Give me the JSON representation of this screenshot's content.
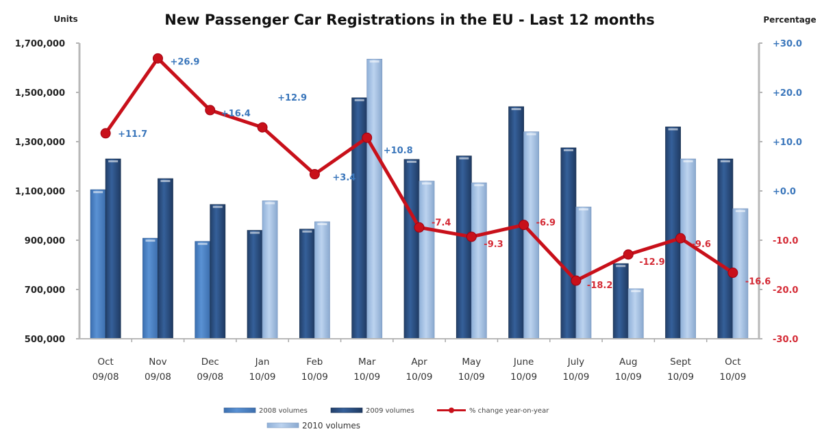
{
  "chart_data": {
    "type": "bar",
    "title": "New Passenger Car Registrations in the EU - Last 12 months",
    "ylabel": "Units",
    "y2label": "Percentage",
    "ylim": [
      500000,
      1700000
    ],
    "y2lim": [
      -30,
      30
    ],
    "yticks": [
      "500,000",
      "700,000",
      "900,000",
      "1,100,000",
      "1,300,000",
      "1,500,000",
      "1,700,000"
    ],
    "y2ticks": [
      "-30.0",
      "-20.0",
      "-10.0",
      "+0.0",
      "+10.0",
      "+20.0",
      "+30.0"
    ],
    "categories": [
      {
        "month": "Oct",
        "period": "09/08"
      },
      {
        "month": "Nov",
        "period": "09/08"
      },
      {
        "month": "Dec",
        "period": "09/08"
      },
      {
        "month": "Jan",
        "period": "10/09"
      },
      {
        "month": "Feb",
        "period": "10/09"
      },
      {
        "month": "Mar",
        "period": "10/09"
      },
      {
        "month": "Apr",
        "period": "10/09"
      },
      {
        "month": "May",
        "period": "10/09"
      },
      {
        "month": "June",
        "period": "10/09"
      },
      {
        "month": "July",
        "period": "10/09"
      },
      {
        "month": "Aug",
        "period": "10/09"
      },
      {
        "month": "Sept",
        "period": "10/09"
      },
      {
        "month": "Oct",
        "period": "10/09"
      }
    ],
    "series": [
      {
        "name": "2008 volumes",
        "type": "bar",
        "axis": "left",
        "color": "#4a80c4",
        "values": [
          1105000,
          908000,
          895000,
          null,
          null,
          null,
          null,
          null,
          null,
          null,
          null,
          null,
          null
        ]
      },
      {
        "name": "2009 volumes",
        "type": "bar",
        "axis": "left",
        "color": "#2c5286",
        "values": [
          1230000,
          1150000,
          1045000,
          940000,
          945000,
          1478000,
          1228000,
          1242000,
          1442000,
          1275000,
          805000,
          1360000,
          1230000
        ]
      },
      {
        "name": "2010 volumes",
        "type": "bar",
        "axis": "left",
        "color": "#a8c4e6",
        "values": [
          null,
          null,
          null,
          1060000,
          975000,
          1635000,
          1140000,
          1133000,
          1340000,
          1035000,
          703000,
          1230000,
          1028000
        ]
      },
      {
        "name": "% change year-on-year",
        "type": "line",
        "axis": "right",
        "color": "#c8101a",
        "values": [
          11.7,
          26.9,
          16.4,
          12.9,
          3.4,
          10.8,
          -7.4,
          -9.3,
          -6.9,
          -18.2,
          -12.9,
          -9.6,
          -16.6
        ],
        "labels": [
          "+11.7",
          "+26.9",
          "+16.4",
          "+12.9",
          "+3.4",
          "+10.8",
          "-7.4",
          "-9.3",
          "-6.9",
          "-18.2",
          "-12.9",
          "-9.6",
          "-16.6"
        ]
      }
    ],
    "legend": {
      "placement": "bottom",
      "entries": [
        "2008 volumes",
        "2009 volumes",
        "% change year-on-year",
        "2010 volumes"
      ]
    },
    "colors": {
      "positive_label": "#3a76bb",
      "negative_label": "#d42a35",
      "axis": "#b8b8b8"
    },
    "grid": false
  }
}
